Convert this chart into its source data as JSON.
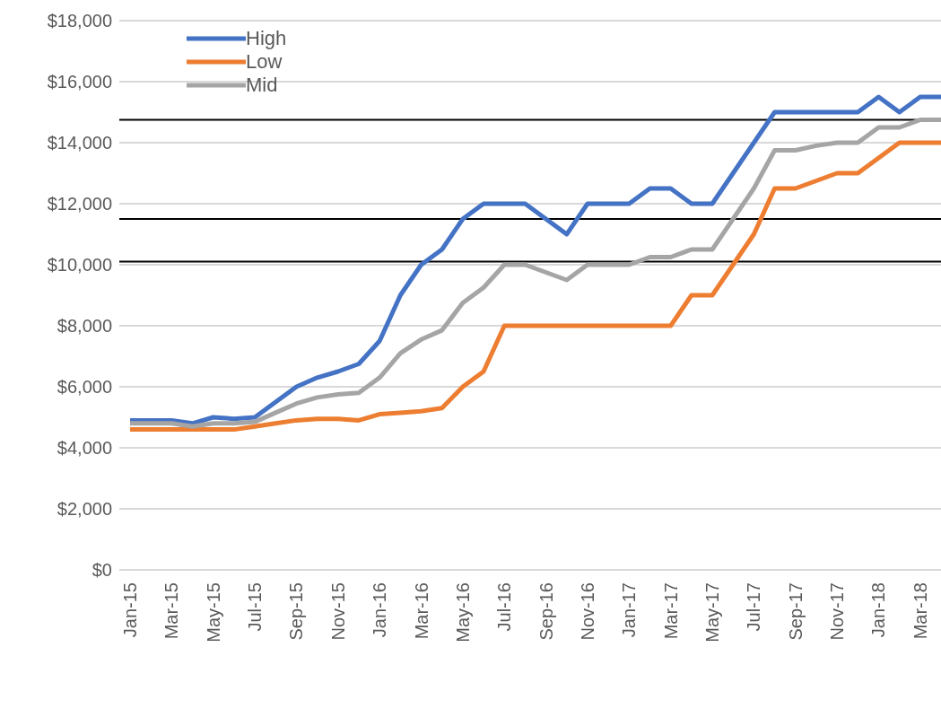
{
  "chart_data": {
    "type": "line",
    "categories": [
      "Jan-15",
      null,
      "Mar-15",
      null,
      "May-15",
      null,
      "Jul-15",
      null,
      "Sep-15",
      null,
      "Nov-15",
      null,
      "Jan-16",
      null,
      "Mar-16",
      null,
      "May-16",
      null,
      "Jul-16",
      null,
      "Sep-16",
      null,
      "Nov-16",
      null,
      "Jan-17",
      null,
      "Mar-17",
      null,
      "May-17",
      null,
      "Jul-17",
      null,
      "Sep-17",
      null,
      "Nov-17",
      null,
      "Jan-18",
      null,
      "Mar-18",
      null
    ],
    "series": [
      {
        "name": "High",
        "color": "#4472c4",
        "values": [
          4900,
          4900,
          4900,
          4800,
          5000,
          4950,
          5000,
          5500,
          6000,
          6300,
          6500,
          6750,
          7500,
          9000,
          10000,
          10500,
          11500,
          12000,
          12000,
          12000,
          11500,
          11000,
          12000,
          12000,
          12000,
          12500,
          12500,
          12000,
          12000,
          13000,
          14000,
          15000,
          15000,
          15000,
          15000,
          15000,
          15500,
          15000,
          15500,
          15500
        ]
      },
      {
        "name": "Low",
        "color": "#ed7d31",
        "values": [
          4600,
          4600,
          4600,
          4600,
          4600,
          4600,
          4700,
          4800,
          4900,
          4950,
          4950,
          4900,
          5100,
          5150,
          5200,
          5300,
          6000,
          6500,
          8000,
          8000,
          8000,
          8000,
          8000,
          8000,
          8000,
          8000,
          8000,
          9000,
          9000,
          10000,
          11000,
          12500,
          12500,
          12750,
          13000,
          13000,
          13500,
          14000,
          14000,
          14000
        ]
      },
      {
        "name": "Mid",
        "color": "#a5a5a5",
        "values": [
          4800,
          4800,
          4800,
          4700,
          4800,
          4800,
          4850,
          5150,
          5450,
          5650,
          5750,
          5800,
          6300,
          7100,
          7550,
          7850,
          8750,
          9250,
          10000,
          10000,
          9750,
          9500,
          10000,
          10000,
          10000,
          10250,
          10250,
          10500,
          10500,
          11500,
          12500,
          13750,
          13750,
          13900,
          14000,
          14000,
          14500,
          14500,
          14750,
          14750
        ]
      }
    ],
    "ylim": [
      0,
      18000
    ],
    "yticks": [
      {
        "value": 0,
        "label": "$0"
      },
      {
        "value": 2000,
        "label": "$2,000"
      },
      {
        "value": 4000,
        "label": "$4,000"
      },
      {
        "value": 6000,
        "label": "$6,000"
      },
      {
        "value": 8000,
        "label": "$8,000"
      },
      {
        "value": 10000,
        "label": "$10,000"
      },
      {
        "value": 12000,
        "label": "$12,000"
      },
      {
        "value": 14000,
        "label": "$14,000"
      },
      {
        "value": 16000,
        "label": "$16,000"
      },
      {
        "value": 18000,
        "label": "$18,000"
      }
    ],
    "grid": "y",
    "legend": "top left",
    "marker": "none",
    "line_style": "solid",
    "ref_lines": [
      {
        "axis": "y",
        "value": 14750,
        "color": "#000000"
      },
      {
        "axis": "y",
        "value": 11500,
        "color": "#000000"
      },
      {
        "axis": "y",
        "value": 10100,
        "color": "#000000"
      }
    ]
  }
}
